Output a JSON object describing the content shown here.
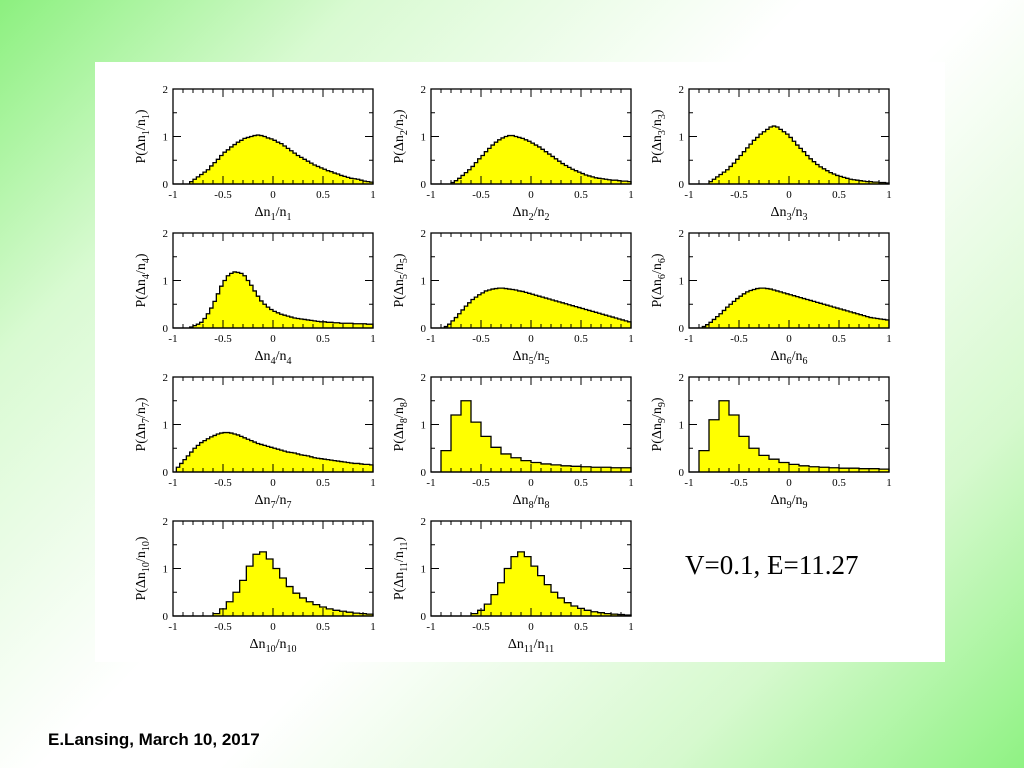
{
  "footer": {
    "text": "E.Lansing, March 10, 2017"
  },
  "params_label": "V=0.1, E=11.27",
  "style": {
    "fill": "#ffff00",
    "stroke": "#000000"
  },
  "chart_data": [
    {
      "type": "histogram",
      "index": "1",
      "xlim": [
        -1,
        1
      ],
      "ylim": [
        0,
        2
      ],
      "xticks": [
        "-1",
        "-0.5",
        "0",
        "0.5",
        "1"
      ],
      "yticks": [
        "0",
        "1",
        "2"
      ],
      "bin_edges": [
        -1,
        1
      ],
      "values": [
        0,
        0,
        0,
        0,
        0,
        0.05,
        0.1,
        0.15,
        0.2,
        0.25,
        0.3,
        0.38,
        0.45,
        0.52,
        0.6,
        0.67,
        0.72,
        0.78,
        0.83,
        0.88,
        0.92,
        0.96,
        0.98,
        1.0,
        1.02,
        1.03,
        1.02,
        1.0,
        0.97,
        0.95,
        0.92,
        0.88,
        0.85,
        0.8,
        0.75,
        0.7,
        0.65,
        0.6,
        0.56,
        0.52,
        0.48,
        0.44,
        0.4,
        0.37,
        0.34,
        0.31,
        0.28,
        0.26,
        0.23,
        0.21,
        0.18,
        0.16,
        0.14,
        0.12,
        0.11,
        0.1,
        0.08,
        0.06,
        0.05,
        0.04
      ]
    },
    {
      "type": "histogram",
      "index": "2",
      "xlim": [
        -1,
        1
      ],
      "ylim": [
        0,
        2
      ],
      "xticks": [
        "-1",
        "-0.5",
        "0",
        "0.5",
        "1"
      ],
      "yticks": [
        "0",
        "1",
        "2"
      ],
      "bin_edges": [
        -1,
        1
      ],
      "values": [
        0,
        0,
        0,
        0,
        0,
        0,
        0.03,
        0.07,
        0.12,
        0.18,
        0.24,
        0.3,
        0.37,
        0.45,
        0.53,
        0.6,
        0.68,
        0.75,
        0.82,
        0.88,
        0.93,
        0.97,
        1.0,
        1.02,
        1.02,
        1.0,
        0.98,
        0.96,
        0.93,
        0.9,
        0.86,
        0.82,
        0.78,
        0.73,
        0.68,
        0.63,
        0.58,
        0.53,
        0.48,
        0.43,
        0.39,
        0.35,
        0.31,
        0.28,
        0.25,
        0.22,
        0.19,
        0.17,
        0.15,
        0.13,
        0.12,
        0.11,
        0.1,
        0.09,
        0.08,
        0.08,
        0.07,
        0.06,
        0.06,
        0.05
      ]
    },
    {
      "type": "histogram",
      "index": "3",
      "xlim": [
        -1,
        1
      ],
      "ylim": [
        0,
        2
      ],
      "xticks": [
        "-1",
        "-0.5",
        "0",
        "0.5",
        "1"
      ],
      "yticks": [
        "0",
        "1",
        "2"
      ],
      "bin_edges": [
        -1,
        1
      ],
      "values": [
        0,
        0,
        0,
        0,
        0,
        0,
        0.05,
        0.1,
        0.15,
        0.2,
        0.25,
        0.3,
        0.37,
        0.44,
        0.52,
        0.6,
        0.68,
        0.76,
        0.84,
        0.92,
        0.98,
        1.05,
        1.1,
        1.15,
        1.2,
        1.22,
        1.2,
        1.15,
        1.1,
        1.05,
        0.98,
        0.9,
        0.82,
        0.75,
        0.68,
        0.6,
        0.53,
        0.47,
        0.41,
        0.36,
        0.32,
        0.28,
        0.24,
        0.21,
        0.18,
        0.16,
        0.14,
        0.12,
        0.1,
        0.09,
        0.08,
        0.07,
        0.06,
        0.05,
        0.05,
        0.04,
        0.04,
        0.03,
        0.03,
        0.02
      ]
    },
    {
      "type": "histogram",
      "index": "4",
      "xlim": [
        -1,
        1
      ],
      "ylim": [
        0,
        2
      ],
      "xticks": [
        "-1",
        "-0.5",
        "0",
        "0.5",
        "1"
      ],
      "yticks": [
        "0",
        "1",
        "2"
      ],
      "bin_edges": [
        -1,
        1
      ],
      "values": [
        0,
        0,
        0,
        0,
        0,
        0.02,
        0.05,
        0.08,
        0.12,
        0.2,
        0.3,
        0.42,
        0.56,
        0.72,
        0.88,
        1.0,
        1.1,
        1.15,
        1.18,
        1.17,
        1.15,
        1.1,
        1.0,
        0.9,
        0.78,
        0.67,
        0.57,
        0.5,
        0.44,
        0.39,
        0.35,
        0.32,
        0.29,
        0.27,
        0.25,
        0.23,
        0.21,
        0.2,
        0.19,
        0.18,
        0.17,
        0.16,
        0.15,
        0.14,
        0.13,
        0.13,
        0.12,
        0.12,
        0.11,
        0.11,
        0.1,
        0.1,
        0.1,
        0.1,
        0.09,
        0.09,
        0.09,
        0.09,
        0.08,
        0.08
      ]
    },
    {
      "type": "histogram",
      "index": "5",
      "xlim": [
        -1,
        1
      ],
      "ylim": [
        0,
        2
      ],
      "xticks": [
        "-1",
        "-0.5",
        "0",
        "0.5",
        "1"
      ],
      "yticks": [
        "0",
        "1",
        "2"
      ],
      "bin_edges": [
        -1,
        1
      ],
      "values": [
        0,
        0,
        0,
        0,
        0.03,
        0.08,
        0.15,
        0.22,
        0.3,
        0.38,
        0.46,
        0.53,
        0.6,
        0.65,
        0.7,
        0.74,
        0.78,
        0.8,
        0.82,
        0.83,
        0.84,
        0.84,
        0.83,
        0.82,
        0.81,
        0.8,
        0.78,
        0.77,
        0.75,
        0.73,
        0.71,
        0.69,
        0.67,
        0.65,
        0.63,
        0.61,
        0.59,
        0.57,
        0.55,
        0.53,
        0.51,
        0.49,
        0.47,
        0.45,
        0.43,
        0.41,
        0.39,
        0.37,
        0.35,
        0.33,
        0.31,
        0.29,
        0.27,
        0.25,
        0.23,
        0.21,
        0.19,
        0.17,
        0.15,
        0.13
      ]
    },
    {
      "type": "histogram",
      "index": "6",
      "xlim": [
        -1,
        1
      ],
      "ylim": [
        0,
        2
      ],
      "xticks": [
        "-1",
        "-0.5",
        "0",
        "0.5",
        "1"
      ],
      "yticks": [
        "0",
        "1",
        "2"
      ],
      "bin_edges": [
        -1,
        1
      ],
      "values": [
        0,
        0,
        0,
        0,
        0.03,
        0.07,
        0.12,
        0.18,
        0.24,
        0.3,
        0.37,
        0.44,
        0.5,
        0.56,
        0.62,
        0.67,
        0.72,
        0.76,
        0.79,
        0.81,
        0.83,
        0.84,
        0.84,
        0.83,
        0.82,
        0.8,
        0.78,
        0.76,
        0.74,
        0.72,
        0.7,
        0.68,
        0.66,
        0.64,
        0.62,
        0.6,
        0.58,
        0.56,
        0.54,
        0.52,
        0.5,
        0.48,
        0.46,
        0.44,
        0.42,
        0.4,
        0.38,
        0.36,
        0.34,
        0.32,
        0.3,
        0.28,
        0.26,
        0.24,
        0.22,
        0.21,
        0.2,
        0.19,
        0.18,
        0.17
      ]
    },
    {
      "type": "histogram",
      "index": "7",
      "xlim": [
        -1,
        1
      ],
      "ylim": [
        0,
        2
      ],
      "xticks": [
        "-1",
        "-0.5",
        "0",
        "0.5",
        "1"
      ],
      "yticks": [
        "0",
        "1",
        "2"
      ],
      "bin_edges": [
        -1,
        1
      ],
      "values": [
        0,
        0.1,
        0.18,
        0.26,
        0.34,
        0.42,
        0.5,
        0.56,
        0.62,
        0.66,
        0.7,
        0.74,
        0.77,
        0.8,
        0.82,
        0.83,
        0.83,
        0.82,
        0.8,
        0.78,
        0.75,
        0.72,
        0.69,
        0.66,
        0.63,
        0.6,
        0.58,
        0.56,
        0.54,
        0.52,
        0.5,
        0.48,
        0.46,
        0.44,
        0.42,
        0.41,
        0.4,
        0.38,
        0.36,
        0.35,
        0.34,
        0.32,
        0.3,
        0.29,
        0.28,
        0.27,
        0.26,
        0.25,
        0.24,
        0.23,
        0.22,
        0.21,
        0.2,
        0.19,
        0.18,
        0.18,
        0.17,
        0.16,
        0.16,
        0.15
      ]
    },
    {
      "type": "histogram",
      "index": "8",
      "xlim": [
        -1,
        1
      ],
      "ylim": [
        0,
        2
      ],
      "xticks": [
        "-1",
        "-0.5",
        "0",
        "0.5",
        "1"
      ],
      "yticks": [
        "0",
        "1",
        "2"
      ],
      "bin_edges": [
        -1,
        1
      ],
      "values": [
        0,
        0.45,
        1.2,
        1.5,
        1.05,
        0.75,
        0.52,
        0.38,
        0.3,
        0.24,
        0.2,
        0.17,
        0.15,
        0.13,
        0.12,
        0.11,
        0.1,
        0.1,
        0.09,
        0.09
      ]
    },
    {
      "type": "histogram",
      "index": "9",
      "xlim": [
        -1,
        1
      ],
      "ylim": [
        0,
        2
      ],
      "xticks": [
        "-1",
        "-0.5",
        "0",
        "0.5",
        "1"
      ],
      "yticks": [
        "0",
        "1",
        "2"
      ],
      "bin_edges": [
        -1,
        1
      ],
      "values": [
        0,
        0.45,
        1.1,
        1.5,
        1.2,
        0.75,
        0.5,
        0.35,
        0.27,
        0.2,
        0.16,
        0.13,
        0.11,
        0.1,
        0.09,
        0.08,
        0.08,
        0.07,
        0.07,
        0.06
      ]
    },
    {
      "type": "histogram",
      "index": "10",
      "xlim": [
        -1,
        1
      ],
      "ylim": [
        0,
        2
      ],
      "xticks": [
        "-1",
        "-0.5",
        "0",
        "0.5",
        "1"
      ],
      "yticks": [
        "0",
        "1",
        "2"
      ],
      "bin_edges": [
        -1,
        1
      ],
      "values": [
        0,
        0,
        0,
        0,
        0,
        0,
        0.05,
        0.15,
        0.3,
        0.5,
        0.75,
        1.05,
        1.3,
        1.35,
        1.2,
        1.0,
        0.8,
        0.62,
        0.48,
        0.38,
        0.3,
        0.24,
        0.19,
        0.15,
        0.12,
        0.1,
        0.08,
        0.06,
        0.05,
        0.04
      ]
    },
    {
      "type": "histogram",
      "index": "11",
      "xlim": [
        -1,
        1
      ],
      "ylim": [
        0,
        2
      ],
      "xticks": [
        "-1",
        "-0.5",
        "0",
        "0.5",
        "1"
      ],
      "yticks": [
        "0",
        "1",
        "2"
      ],
      "bin_edges": [
        -1,
        1
      ],
      "values": [
        0,
        0,
        0,
        0,
        0,
        0,
        0.05,
        0.12,
        0.25,
        0.45,
        0.7,
        1.0,
        1.25,
        1.35,
        1.25,
        1.05,
        0.85,
        0.66,
        0.5,
        0.38,
        0.28,
        0.21,
        0.16,
        0.12,
        0.09,
        0.07,
        0.05,
        0.04,
        0.03,
        0.02
      ]
    }
  ]
}
